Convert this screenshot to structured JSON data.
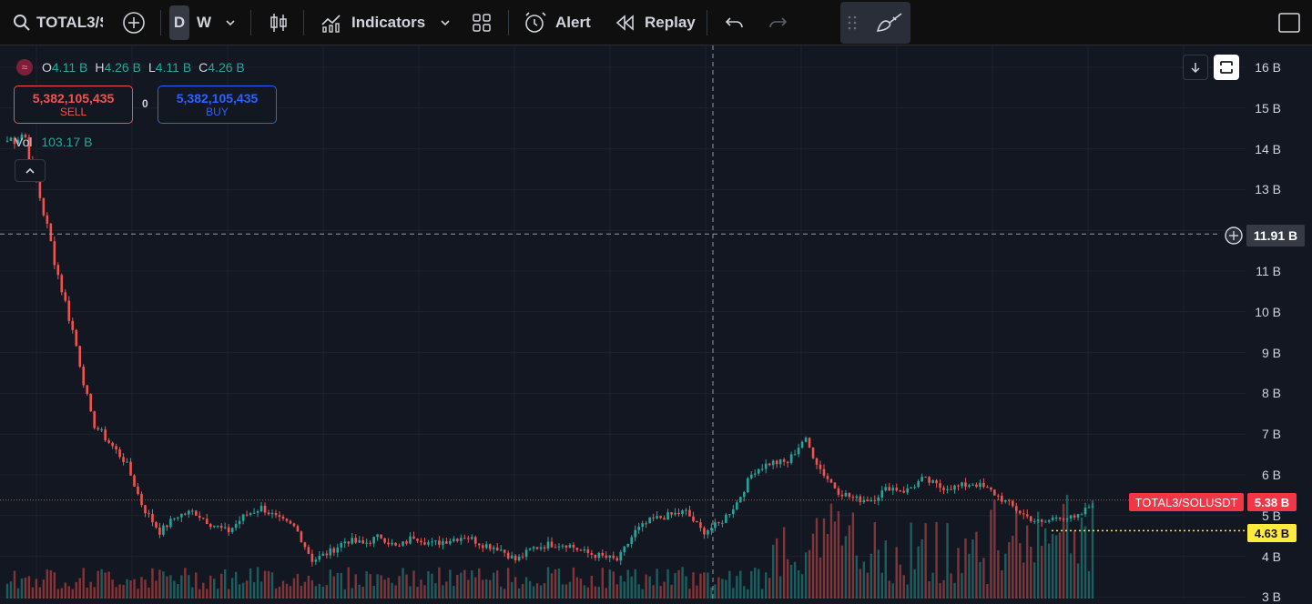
{
  "toolbar": {
    "symbol": "TOTAL3/S",
    "interval_d": "D",
    "interval_w": "W",
    "indicators_label": "Indicators",
    "alert_label": "Alert",
    "replay_label": "Replay"
  },
  "legend": {
    "o_label": "O",
    "o_value": "4.11 B",
    "h_label": "H",
    "h_value": "4.26 B",
    "l_label": "L",
    "l_value": "4.11 B",
    "c_label": "C",
    "c_value": "4.26 B"
  },
  "trade": {
    "sell_price": "5,382,105,435",
    "sell_label": "SELL",
    "spread": "0",
    "buy_price": "5,382,105,435",
    "buy_label": "BUY"
  },
  "volume": {
    "label": "Vol",
    "value": "103.17 B"
  },
  "price_axis": [
    "16 B",
    "15 B",
    "14 B",
    "13 B",
    "12 B",
    "11 B",
    "10 B",
    "9 B",
    "8 B",
    "7 B",
    "6 B",
    "5 B",
    "4 B",
    "3 B"
  ],
  "crosshair": {
    "price_label": "11.91 B"
  },
  "last_price": {
    "symbol_label": "TOTAL3/SOLUSDT",
    "value": "5.38 B"
  },
  "low_marker": {
    "value": "4.63 B"
  },
  "colors": {
    "background": "#131722",
    "up": "#26a69a",
    "down": "#ef5350",
    "last_price_tag": "#f23645",
    "low_marker": "#ffeb3b",
    "buy_border": "#2962ff"
  },
  "chart_data": {
    "type": "candlestick",
    "price_unit": "B",
    "ylim": [
      3,
      16.5
    ],
    "close_series_approx": [
      14.2,
      14.4,
      12.7,
      10.9,
      9.3,
      7.3,
      6.8,
      6.3,
      5.2,
      4.6,
      5.0,
      5.1,
      4.8,
      4.6,
      5.0,
      5.2,
      4.9,
      4.7,
      3.9,
      4.1,
      4.4,
      4.3,
      4.5,
      4.2,
      4.5,
      4.3,
      4.4,
      4.5,
      4.3,
      4.2,
      3.9,
      4.2,
      4.3,
      4.3,
      4.1,
      4.0,
      3.9,
      4.6,
      4.9,
      5.0,
      5.1,
      4.6,
      4.8,
      5.3,
      6.1,
      6.3,
      6.3,
      6.9,
      6.1,
      5.6,
      5.4,
      5.4,
      5.7,
      5.6,
      5.9,
      5.7,
      5.7,
      5.8,
      5.6,
      5.3,
      5.0,
      4.8,
      5.0,
      4.9,
      5.3
    ],
    "last_price": 5.38,
    "low_marker": 4.63,
    "crosshair_price": 11.91
  }
}
